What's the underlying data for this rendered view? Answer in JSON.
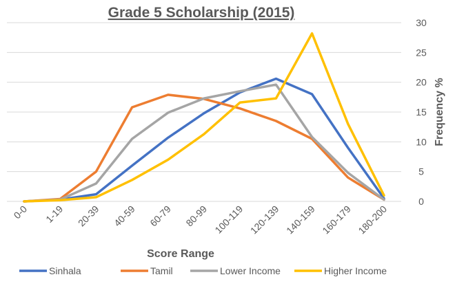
{
  "chart_data": {
    "type": "line",
    "title": "Grade 5 Scholarship (2015)",
    "xlabel": "Score Range",
    "ylabel": "Frequency %",
    "categories": [
      "0-0",
      "1-19",
      "20-39",
      "40-59",
      "60-79",
      "80-99",
      "100-119",
      "120-139",
      "140-159",
      "160-179",
      "180-200"
    ],
    "ylim": [
      0,
      30
    ],
    "yticks": [
      "0",
      "5",
      "10",
      "15",
      "20",
      "25",
      "30"
    ],
    "grid": true,
    "y_axis_side": "right",
    "legend_position": "bottom",
    "series": [
      {
        "name": "Sinhala",
        "color": "#4472c4",
        "values": [
          0,
          0.3,
          1.2,
          6.0,
          10.7,
          14.8,
          18.3,
          20.6,
          18.0,
          9.0,
          0.5
        ]
      },
      {
        "name": "Tamil",
        "color": "#ed7d31",
        "values": [
          0,
          0.4,
          5.0,
          15.8,
          17.9,
          17.2,
          15.6,
          13.5,
          10.5,
          4.0,
          0.3
        ]
      },
      {
        "name": "Lower Income",
        "color": "#a5a5a5",
        "values": [
          0,
          0.3,
          3.0,
          10.5,
          14.9,
          17.3,
          18.5,
          19.6,
          10.8,
          4.8,
          0.3
        ]
      },
      {
        "name": "Higher Income",
        "color": "#ffc000",
        "values": [
          0,
          0.2,
          0.7,
          3.6,
          7.0,
          11.3,
          16.6,
          17.3,
          28.2,
          13.0,
          1.0
        ]
      }
    ]
  }
}
